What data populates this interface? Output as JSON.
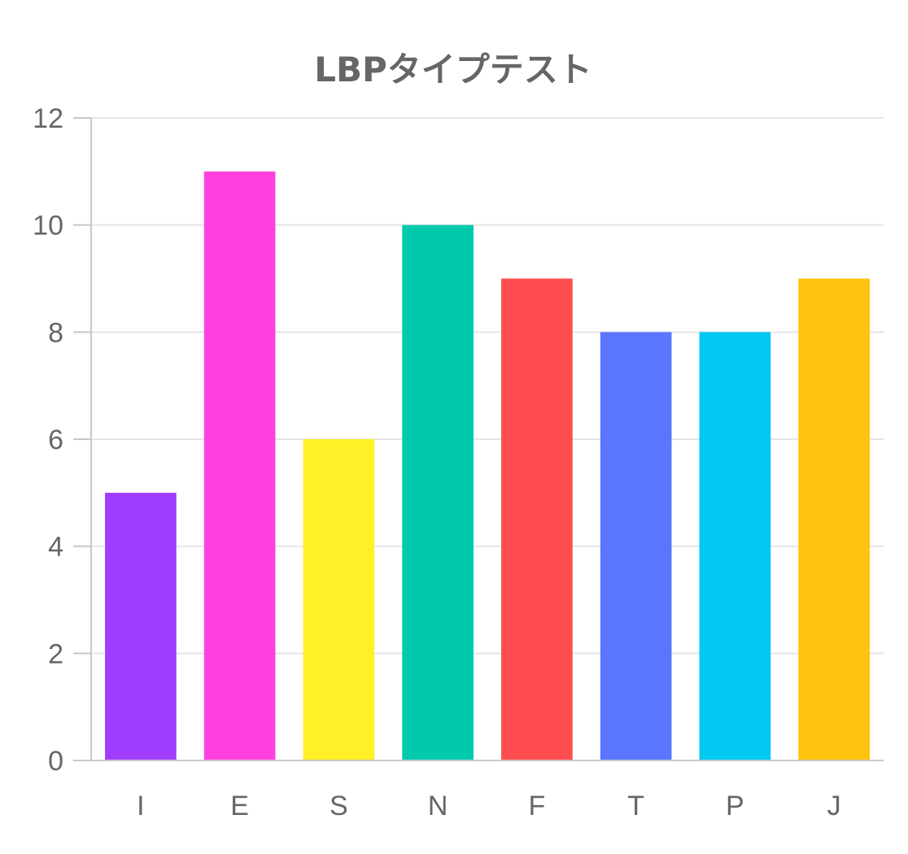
{
  "chart_data": {
    "type": "bar",
    "title": "LBPタイプテスト",
    "xlabel": "",
    "ylabel": "",
    "categories": [
      "I",
      "E",
      "S",
      "N",
      "F",
      "T",
      "P",
      "J"
    ],
    "values": [
      5,
      11,
      6,
      10,
      9,
      8,
      8,
      9
    ],
    "colors": [
      "#a13dff",
      "#ff40de",
      "#fff028",
      "#00c9ae",
      "#ff4d4f",
      "#5a75ff",
      "#00c8f0",
      "#ffc20f"
    ],
    "ylim": [
      0,
      12
    ],
    "yticks": [
      0,
      2,
      4,
      6,
      8,
      10,
      12
    ],
    "ytick_labels": [
      "0",
      "2",
      "4",
      "6",
      "8",
      "10",
      "12"
    ],
    "grid": true,
    "legend": "none"
  }
}
